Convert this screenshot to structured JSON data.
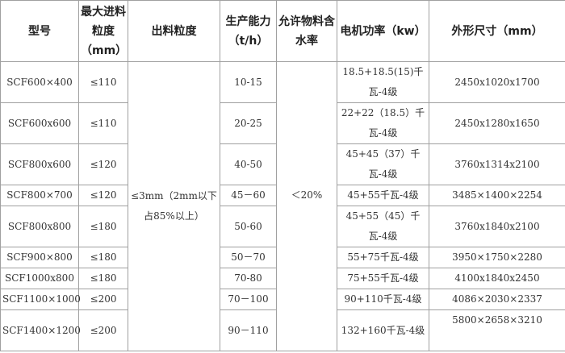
{
  "headers": {
    "model": "型号",
    "max_feed": "最大进料粒度（mm）",
    "output_size": "出料粒度",
    "capacity": "生产能力（t/h）",
    "moisture": "允许物料含水率",
    "motor_power": "电机功率（kw）",
    "dimensions": "外形尺寸（mm）"
  },
  "shared": {
    "output_size": "≤3mm（2mm以下占85%以上）",
    "moisture": "＜20%"
  },
  "rows": [
    {
      "model": "SCF600×400",
      "max_feed": "≤110",
      "capacity": "10-15",
      "motor_power": "18.5+18.5(15)千瓦-4级",
      "dimensions": "2450x1020x1700"
    },
    {
      "model": "SCF600x600",
      "max_feed": "≤110",
      "capacity": "20-25",
      "motor_power": "22+22（18.5）千瓦-4级",
      "dimensions": "2450x1280x1650"
    },
    {
      "model": "SCF800x600",
      "max_feed": "≤120",
      "capacity": "40-50",
      "motor_power": "45+45（37）千瓦-4级",
      "dimensions": "3760x1314x2100"
    },
    {
      "model": "SCF800×700",
      "max_feed": "≤120",
      "capacity": "45－60",
      "motor_power": "45+55千瓦-4级",
      "dimensions": "3485×1400×2254"
    },
    {
      "model": "SCF800x800",
      "max_feed": "≤180",
      "capacity": "50-60",
      "motor_power": "45+55（45）千瓦-4级",
      "dimensions": "3760x1840x2100"
    },
    {
      "model": "SCF900×800",
      "max_feed": "≤180",
      "capacity": "50－70",
      "motor_power": "55+75千瓦-4级",
      "dimensions": "3950×1750×2280"
    },
    {
      "model": "SCF1000x800",
      "max_feed": "≤180",
      "capacity": "70-80",
      "motor_power": "75+55千瓦-4级",
      "dimensions": "4100x1840x2450"
    },
    {
      "model": "SCF1100×1000",
      "max_feed": "≤200",
      "capacity": "70－100",
      "motor_power": "90+110千瓦-4级",
      "dimensions": "4086×2030×2337"
    },
    {
      "model": "SCF1400×1200",
      "max_feed": "≤200",
      "capacity": "90－110",
      "motor_power": "132+160千瓦-4级",
      "dimensions": "5800×2658×3210"
    }
  ]
}
